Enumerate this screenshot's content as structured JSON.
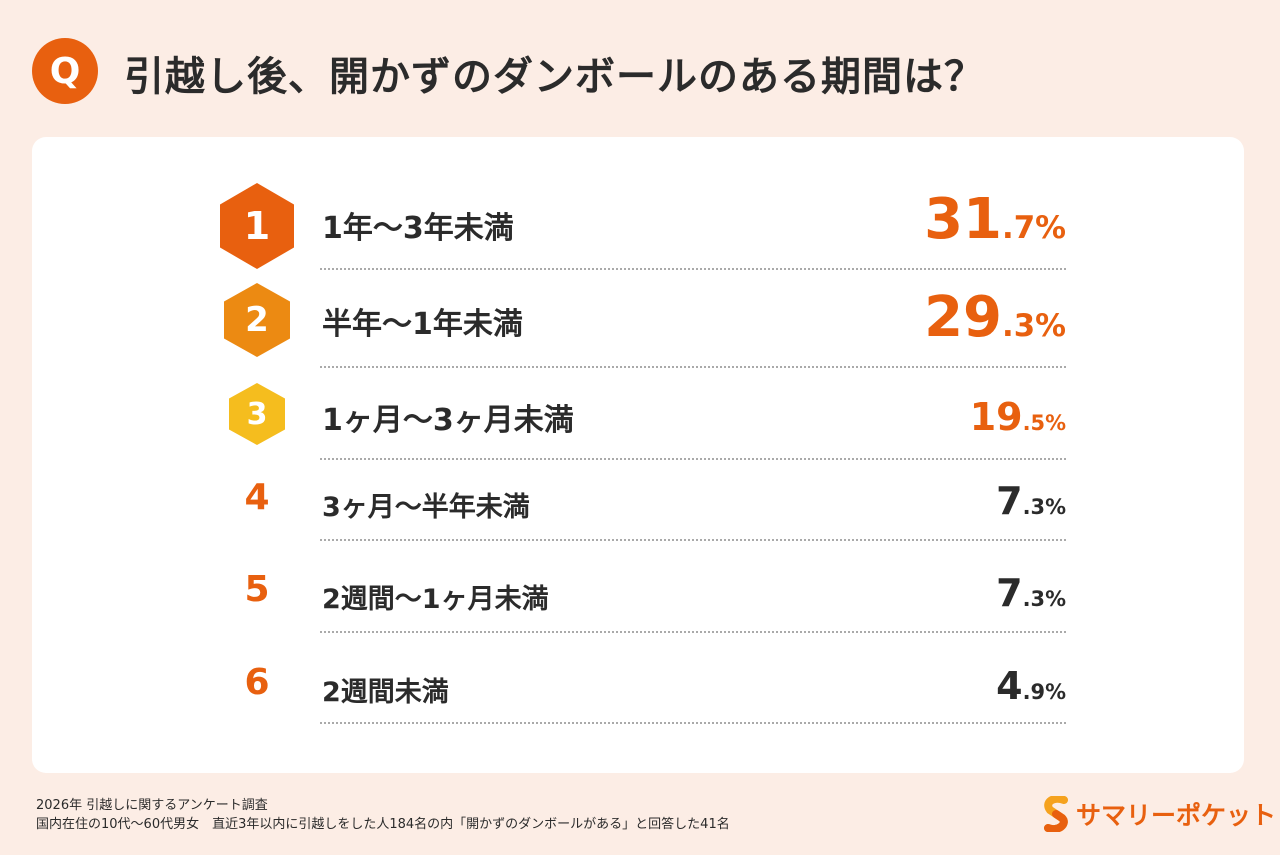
{
  "header": {
    "q_label": "Q",
    "title": "引越し後、開かずのダンボールのある期間は？"
  },
  "chart_data": {
    "type": "table",
    "columns": [
      "rank",
      "period",
      "percent"
    ],
    "rows": [
      {
        "rank": "1",
        "label": "1年〜3年未満",
        "int": "31",
        "dec": ".7%",
        "value": 31.7
      },
      {
        "rank": "2",
        "label": "半年〜1年未満",
        "int": "29",
        "dec": ".3%",
        "value": 29.3
      },
      {
        "rank": "3",
        "label": "1ヶ月〜3ヶ月未満",
        "int": "19",
        "dec": ".5%",
        "value": 19.5
      },
      {
        "rank": "4",
        "label": "3ヶ月〜半年未満",
        "int": "7",
        "dec": ".3%",
        "value": 7.3
      },
      {
        "rank": "5",
        "label": "2週間〜1ヶ月未満",
        "int": "7",
        "dec": ".3%",
        "value": 7.3
      },
      {
        "rank": "6",
        "label": "2週間未満",
        "int": "4",
        "dec": ".9%",
        "value": 4.9
      }
    ],
    "colors": {
      "rank1": "#e8600f",
      "rank2": "#ec8a12",
      "rank3": "#f5bd1e",
      "accent": "#e8600f",
      "text": "#2b2b2b"
    }
  },
  "footer": {
    "line1": "2026年  引越しに関するアンケート調査",
    "line2": "国内在住の10代〜60代男女　直近3年以内に引越しをした人184名の内「開かずのダンボールがある」と回答した41名"
  },
  "logo": {
    "text": "サマリーポケット"
  }
}
